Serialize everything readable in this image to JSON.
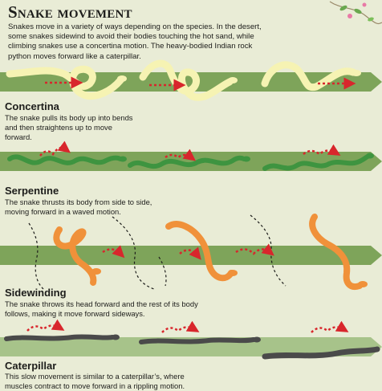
{
  "title": "Snake movement",
  "intro": "Snakes move in a variety of ways depending on the species. In the desert, some snakes sidewind to avoid their bodies touching the hot sand, while climbing snakes use a concertina motion. The heavy-bodied Indian rock python moves forward like a caterpillar.",
  "sections": [
    {
      "heading": "Concertina",
      "description": "The snake pulls its body up into bends and then straightens up to move forward."
    },
    {
      "heading": "Serpentine",
      "description": "The snake thrusts its body from side to side, moving forward in a waved motion."
    },
    {
      "heading": "Sidewinding",
      "description": "The snake throws its head forward and the rest of its body follows, making it move forward sideways."
    },
    {
      "heading": "Caterpillar",
      "description": "This slow movement is similar to a caterpillar’s, where muscles contract to move forward in a rippling motion."
    }
  ],
  "colors": {
    "background": "#e9ecd6",
    "ground_band": "#7ea45a",
    "ground_band_light": "#a7c38a",
    "concertina_snake": "#f6f3b3",
    "serpentine_snake": "#4ea54a",
    "sidewinding_snake": "#f0913a",
    "caterpillar_snake": "#4a4a4a",
    "motion_arrow": "#d8262c"
  }
}
